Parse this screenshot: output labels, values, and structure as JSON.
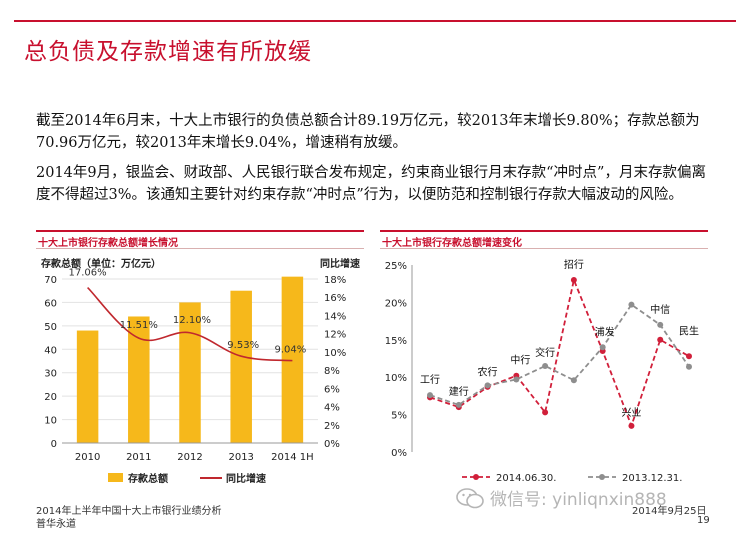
{
  "slide": {
    "title": "总负债及存款增速有所放缓",
    "paragraph1": "截至2014年6月末，十大上市银行的负债总额合计89.19万亿元，较2013年末增长9.80%；存款总额为70.96万亿元，较2013年末增长9.04%，增速稍有放缓。",
    "paragraph2": "2014年9月，银监会、财政部、人民银行联合发布规定，约束商业银行月末存款“冲时点”，月末存款偏离度不得超过3%。该通知主要针对约束存款“冲时点”行为，以便防范和控制银行存款大幅波动的风险。"
  },
  "footer": {
    "left_line1": "2014年上半年中国十大上市银行业绩分析",
    "left_line2": "普华永道",
    "date": "2014年9月25日",
    "page": "19",
    "watermark": "微信号: yinliqnxin888"
  },
  "colors": {
    "accent": "#c8102e",
    "bar": "#f6b81b",
    "growth_line": "#c0282e",
    "grid": "#e2e2e2",
    "series_2014": "#d11f3a",
    "series_2013": "#8e8e8e"
  },
  "chart_data": [
    {
      "type": "bar",
      "title": "十大上市银行存款总额增长情况",
      "categories": [
        "2010",
        "2011",
        "2012",
        "2013",
        "2014 1H"
      ],
      "ylabel": "存款总额（单位：万亿元）",
      "y2label": "同比增速",
      "ylim": [
        0,
        70
      ],
      "yticks": [
        0,
        10,
        20,
        30,
        40,
        50,
        60,
        70
      ],
      "y2lim": [
        0,
        18
      ],
      "y2ticks": [
        "0%",
        "2%",
        "4%",
        "6%",
        "8%",
        "10%",
        "12%",
        "14%",
        "16%",
        "18%"
      ],
      "series": [
        {
          "name": "存款总额",
          "kind": "bar",
          "values": [
            48,
            54,
            60,
            65,
            71
          ]
        },
        {
          "name": "同比增速",
          "kind": "line",
          "values": [
            17.06,
            11.51,
            12.1,
            9.53,
            9.04
          ],
          "labels": [
            "17.06%",
            "11.51%",
            "12.10%",
            "9.53%",
            "9.04%"
          ]
        }
      ],
      "legend": "bottom"
    },
    {
      "type": "line",
      "title": "十大上市银行存款总额增速变化",
      "categories": [
        "工行",
        "建行",
        "农行",
        "中行",
        "交行",
        "招行",
        "浦发",
        "兴业",
        "中信",
        "民生"
      ],
      "ylim": [
        0,
        25
      ],
      "yticks": [
        "0%",
        "5%",
        "10%",
        "15%",
        "20%",
        "25%"
      ],
      "series": [
        {
          "name": "2014.06.30.",
          "values": [
            7.3,
            6.0,
            8.7,
            10.2,
            5.3,
            23.0,
            13.5,
            3.5,
            15.0,
            12.8
          ]
        },
        {
          "name": "2013.12.31.",
          "values": [
            7.6,
            6.3,
            8.9,
            9.7,
            11.5,
            9.6,
            14.0,
            19.7,
            17.0,
            11.4
          ]
        }
      ],
      "legend": "bottom"
    }
  ]
}
